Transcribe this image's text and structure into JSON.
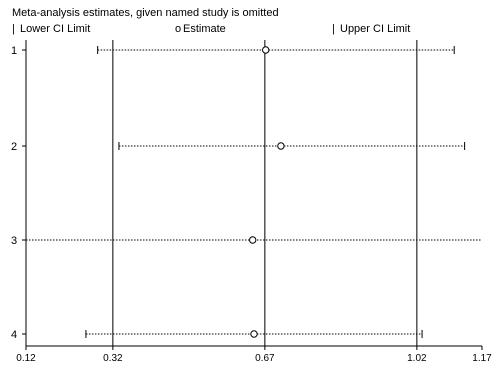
{
  "chart_data": {
    "type": "forest",
    "title": "Meta-analysis estimates, given named study is omitted",
    "legend": [
      {
        "symbol": "|",
        "label": "Lower CI Limit"
      },
      {
        "symbol": "o",
        "label": "Estimate"
      },
      {
        "symbol": "|",
        "label": "Upper CI Limit"
      }
    ],
    "xlim": [
      0.12,
      1.17
    ],
    "xticks": [
      0.12,
      0.32,
      0.67,
      1.02,
      1.17
    ],
    "xtick_labels": [
      "0.12",
      "0.32",
      "0.67",
      "1.02",
      "1.17"
    ],
    "reference_lines": [
      0.32,
      0.67,
      1.02
    ],
    "studies": [
      {
        "label": "1",
        "lower": 0.285,
        "estimate": 0.672,
        "upper": 1.106
      },
      {
        "label": "2",
        "lower": 0.334,
        "estimate": 0.707,
        "upper": 1.13
      },
      {
        "label": "3",
        "lower": 0.12,
        "estimate": 0.642,
        "upper": 1.17
      },
      {
        "label": "4",
        "lower": 0.258,
        "estimate": 0.645,
        "upper": 1.032
      }
    ]
  }
}
